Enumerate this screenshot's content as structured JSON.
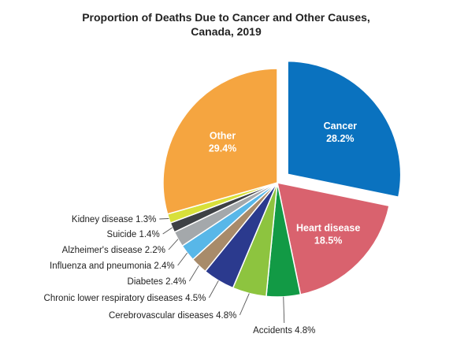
{
  "chart_data": {
    "type": "pie",
    "title": "Proportion of Deaths Due to Cancer and Other Causes, Canada, 2019",
    "title_lines": [
      "Proportion of Deaths Due to Cancer and Other Causes,",
      "Canada, 2019"
    ],
    "unit": "%",
    "exploded_slice": "Cancer",
    "slices": [
      {
        "label": "Cancer",
        "value": 28.2,
        "display": "28.2%",
        "color": "#0a72bf"
      },
      {
        "label": "Heart disease",
        "value": 18.5,
        "display": "18.5%",
        "color": "#d9626e"
      },
      {
        "label": "Accidents",
        "value": 4.8,
        "display": "4.8%",
        "color": "#129a45"
      },
      {
        "label": "Cerebrovascular diseases",
        "value": 4.8,
        "display": "4.8%",
        "color": "#8dc43f"
      },
      {
        "label": "Chronic lower respiratory diseases",
        "value": 4.5,
        "display": "4.5%",
        "color": "#2b3a8e"
      },
      {
        "label": "Diabetes",
        "value": 2.4,
        "display": "2.4%",
        "color": "#a88b6a"
      },
      {
        "label": "Influenza and pneumonia",
        "value": 2.4,
        "display": "2.4%",
        "color": "#58b7e8"
      },
      {
        "label": "Alzheimer's disease",
        "value": 2.2,
        "display": "2.2%",
        "color": "#a4a8ab"
      },
      {
        "label": "Suicide",
        "value": 1.4,
        "display": "1.4%",
        "color": "#3e4145"
      },
      {
        "label": "Kidney disease",
        "value": 1.3,
        "display": "1.3%",
        "color": "#d8e03a"
      },
      {
        "label": "Other",
        "value": 29.4,
        "display": "29.4%",
        "color": "#f5a540"
      }
    ]
  }
}
